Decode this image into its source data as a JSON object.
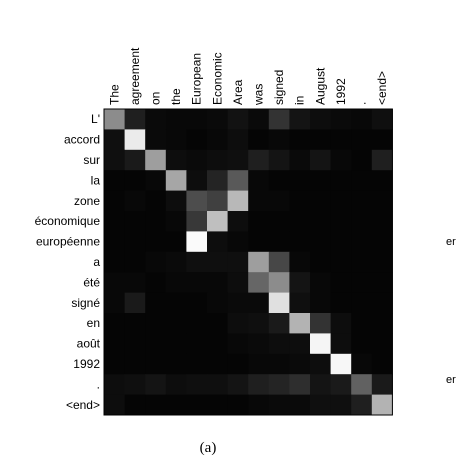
{
  "chart_data": {
    "type": "heatmap",
    "colormap": "grayscale (black = 0, white = 1)",
    "x_labels": [
      "The",
      "agreement",
      "on",
      "the",
      "European",
      "Economic",
      "Area",
      "was",
      "signed",
      "in",
      "August",
      "1992",
      ".",
      "<end>"
    ],
    "y_labels": [
      "L'",
      "accord",
      "sur",
      "la",
      "zone",
      "économique",
      "européenne",
      "a",
      "été",
      "signé",
      "en",
      "août",
      "1992",
      ".",
      "<end>"
    ],
    "values": [
      [
        0.55,
        0.12,
        0.04,
        0.03,
        0.03,
        0.04,
        0.07,
        0.04,
        0.2,
        0.08,
        0.05,
        0.04,
        0.03,
        0.06
      ],
      [
        0.06,
        0.92,
        0.04,
        0.03,
        0.02,
        0.03,
        0.05,
        0.02,
        0.03,
        0.02,
        0.02,
        0.02,
        0.02,
        0.02
      ],
      [
        0.06,
        0.1,
        0.62,
        0.05,
        0.04,
        0.05,
        0.06,
        0.12,
        0.08,
        0.04,
        0.08,
        0.03,
        0.02,
        0.12
      ],
      [
        0.02,
        0.02,
        0.03,
        0.65,
        0.05,
        0.14,
        0.35,
        0.03,
        0.02,
        0.02,
        0.02,
        0.02,
        0.02,
        0.02
      ],
      [
        0.02,
        0.03,
        0.02,
        0.05,
        0.3,
        0.25,
        0.72,
        0.03,
        0.03,
        0.02,
        0.02,
        0.02,
        0.02,
        0.02
      ],
      [
        0.02,
        0.02,
        0.02,
        0.03,
        0.22,
        0.75,
        0.05,
        0.02,
        0.02,
        0.02,
        0.02,
        0.02,
        0.02,
        0.02
      ],
      [
        0.02,
        0.02,
        0.02,
        0.02,
        0.98,
        0.05,
        0.03,
        0.02,
        0.02,
        0.02,
        0.02,
        0.02,
        0.02,
        0.02
      ],
      [
        0.02,
        0.02,
        0.03,
        0.04,
        0.06,
        0.06,
        0.06,
        0.62,
        0.28,
        0.03,
        0.02,
        0.02,
        0.02,
        0.02
      ],
      [
        0.03,
        0.03,
        0.02,
        0.03,
        0.03,
        0.03,
        0.05,
        0.4,
        0.55,
        0.08,
        0.03,
        0.02,
        0.02,
        0.02
      ],
      [
        0.03,
        0.1,
        0.02,
        0.02,
        0.02,
        0.03,
        0.04,
        0.04,
        0.88,
        0.06,
        0.03,
        0.02,
        0.02,
        0.02
      ],
      [
        0.02,
        0.02,
        0.02,
        0.02,
        0.02,
        0.02,
        0.05,
        0.06,
        0.1,
        0.7,
        0.2,
        0.05,
        0.02,
        0.02
      ],
      [
        0.02,
        0.02,
        0.02,
        0.02,
        0.02,
        0.02,
        0.03,
        0.04,
        0.05,
        0.05,
        0.96,
        0.05,
        0.02,
        0.02
      ],
      [
        0.02,
        0.02,
        0.02,
        0.02,
        0.02,
        0.02,
        0.02,
        0.03,
        0.03,
        0.04,
        0.05,
        0.97,
        0.03,
        0.02
      ],
      [
        0.05,
        0.06,
        0.08,
        0.05,
        0.06,
        0.06,
        0.08,
        0.12,
        0.14,
        0.18,
        0.08,
        0.1,
        0.38,
        0.1
      ],
      [
        0.05,
        0.02,
        0.02,
        0.02,
        0.02,
        0.02,
        0.02,
        0.03,
        0.04,
        0.04,
        0.06,
        0.06,
        0.12,
        0.7
      ]
    ]
  },
  "caption": "(a)",
  "right_edge_labels": [
    "er",
    "er"
  ]
}
